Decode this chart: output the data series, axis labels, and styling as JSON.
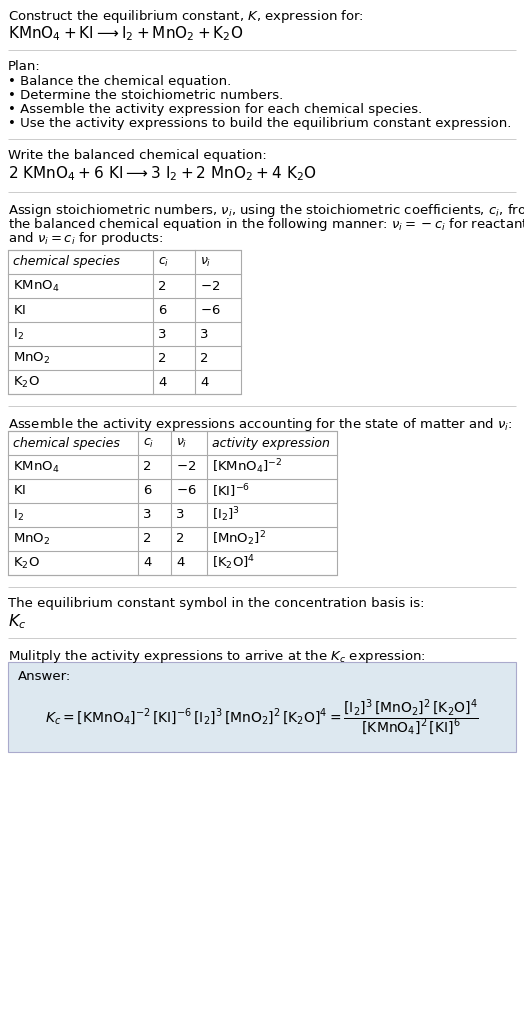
{
  "title_line1": "Construct the equilibrium constant, $K$, expression for:",
  "title_line2": "$\\mathrm{KMnO_4 + KI \\longrightarrow I_2 + MnO_2 + K_2O}$",
  "plan_header": "Plan:",
  "plan_items": [
    "• Balance the chemical equation.",
    "• Determine the stoichiometric numbers.",
    "• Assemble the activity expression for each chemical species.",
    "• Use the activity expressions to build the equilibrium constant expression."
  ],
  "balanced_header": "Write the balanced chemical equation:",
  "balanced_eq": "$\\mathrm{2\\ KMnO_4 + 6\\ KI \\longrightarrow 3\\ I_2 + 2\\ MnO_2 + 4\\ K_2O}$",
  "stoich_header_lines": [
    "Assign stoichiometric numbers, $\\nu_i$, using the stoichiometric coefficients, $c_i$, from",
    "the balanced chemical equation in the following manner: $\\nu_i = -c_i$ for reactants",
    "and $\\nu_i = c_i$ for products:"
  ],
  "table1_headers": [
    "chemical species",
    "$c_i$",
    "$\\nu_i$"
  ],
  "table1_rows": [
    [
      "$\\mathrm{KMnO_4}$",
      "2",
      "$-2$"
    ],
    [
      "$\\mathrm{KI}$",
      "6",
      "$-6$"
    ],
    [
      "$\\mathrm{I_2}$",
      "3",
      "3"
    ],
    [
      "$\\mathrm{MnO_2}$",
      "2",
      "2"
    ],
    [
      "$\\mathrm{K_2O}$",
      "4",
      "4"
    ]
  ],
  "activity_header": "Assemble the activity expressions accounting for the state of matter and $\\nu_i$:",
  "table2_headers": [
    "chemical species",
    "$c_i$",
    "$\\nu_i$",
    "activity expression"
  ],
  "table2_rows": [
    [
      "$\\mathrm{KMnO_4}$",
      "2",
      "$-2$",
      "$[\\mathrm{KMnO_4}]^{-2}$"
    ],
    [
      "$\\mathrm{KI}$",
      "6",
      "$-6$",
      "$[\\mathrm{KI}]^{-6}$"
    ],
    [
      "$\\mathrm{I_2}$",
      "3",
      "3",
      "$[\\mathrm{I_2}]^3$"
    ],
    [
      "$\\mathrm{MnO_2}$",
      "2",
      "2",
      "$[\\mathrm{MnO_2}]^2$"
    ],
    [
      "$\\mathrm{K_2O}$",
      "4",
      "4",
      "$[\\mathrm{K_2O}]^4$"
    ]
  ],
  "kc_header": "The equilibrium constant symbol in the concentration basis is:",
  "kc_symbol": "$K_c$",
  "multiply_header": "Mulitply the activity expressions to arrive at the $K_c$ expression:",
  "answer_label": "Answer:",
  "answer_eq": "$K_c = [\\mathrm{KMnO_4}]^{-2}\\,[\\mathrm{KI}]^{-6}\\,[\\mathrm{I_2}]^3\\,[\\mathrm{MnO_2}]^2\\,[\\mathrm{K_2O}]^4 = \\dfrac{[\\mathrm{I_2}]^3\\,[\\mathrm{MnO_2}]^2\\,[\\mathrm{K_2O}]^4}{[\\mathrm{KMnO_4}]^2\\,[\\mathrm{KI}]^6}$",
  "bg_color": "#ffffff",
  "text_color": "#000000",
  "table_border_color": "#aaaaaa",
  "answer_box_color": "#dde8f0",
  "divider_color": "#cccccc",
  "font_size": 9.5
}
